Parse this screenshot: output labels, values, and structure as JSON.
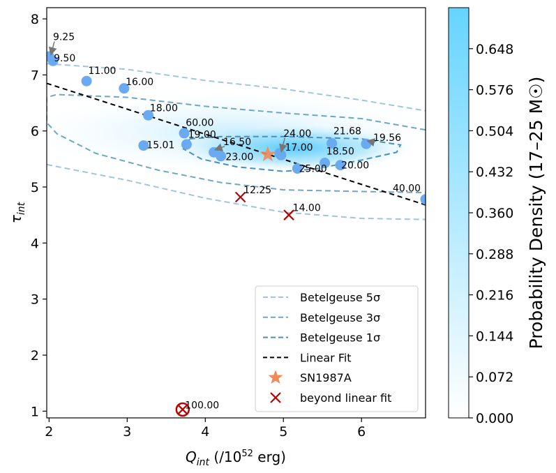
{
  "chart_data": {
    "type": "scatter",
    "xlabel_main": "Q",
    "xlabel_sub": "int",
    "xlabel_unit_prefix": " (/10",
    "xlabel_unit_exp": "52",
    "xlabel_unit_suffix": " erg)",
    "ylabel_main": "τ",
    "ylabel_sub": "int",
    "xlim": [
      1.97,
      6.82
    ],
    "ylim": [
      0.88,
      8.2
    ],
    "xticks": [
      "2",
      "3",
      "4",
      "5",
      "6"
    ],
    "yticks": [
      "1",
      "2",
      "3",
      "4",
      "5",
      "6",
      "7",
      "8"
    ],
    "grid": false,
    "colorbar": {
      "label": "Probability Density (17–25 M☉)",
      "ticks": [
        "0.000",
        "0.072",
        "0.144",
        "0.216",
        "0.288",
        "0.360",
        "0.432",
        "0.504",
        "0.576",
        "0.648"
      ],
      "max": 0.72,
      "color_low": "#ffffff",
      "color_high": "#66d4ff"
    },
    "linear_fit": {
      "x": [
        1.97,
        6.82
      ],
      "y": [
        6.85,
        4.68
      ]
    },
    "points": [
      {
        "label": "9.25",
        "x": 2.0,
        "y": 7.33,
        "lx": 2.05,
        "ly": 7.62,
        "arrow": true
      },
      {
        "label": "9.50",
        "x": 2.05,
        "y": 7.25,
        "lx": 2.06,
        "ly": 7.24,
        "arrow": false
      },
      {
        "label": "11.00",
        "x": 2.48,
        "y": 6.89,
        "lx": 2.5,
        "ly": 7.02,
        "arrow": false
      },
      {
        "label": "16.00",
        "x": 2.96,
        "y": 6.76,
        "lx": 2.98,
        "ly": 6.82,
        "arrow": false
      },
      {
        "label": "18.00",
        "x": 3.27,
        "y": 6.28,
        "lx": 3.29,
        "ly": 6.35,
        "arrow": false
      },
      {
        "label": "60.00",
        "x": 3.73,
        "y": 5.96,
        "lx": 3.75,
        "ly": 6.09,
        "arrow": false
      },
      {
        "label": "19.00",
        "x": 3.76,
        "y": 5.76,
        "lx": 3.78,
        "ly": 5.88,
        "arrow": false
      },
      {
        "label": "15.01",
        "x": 3.21,
        "y": 5.74,
        "lx": 3.25,
        "ly": 5.69,
        "arrow": false
      },
      {
        "label": "16.50",
        "x": 4.11,
        "y": 5.62,
        "lx": 4.23,
        "ly": 5.75,
        "arrow": true
      },
      {
        "label": "23.00",
        "x": 4.2,
        "y": 5.55,
        "lx": 4.26,
        "ly": 5.48,
        "arrow": false
      },
      {
        "label": "24.00",
        "x": 4.95,
        "y": 5.6,
        "lx": 5.0,
        "ly": 5.9,
        "arrow": true
      },
      {
        "label": "17.00",
        "x": 4.97,
        "y": 5.57,
        "lx": 5.02,
        "ly": 5.65,
        "arrow": false
      },
      {
        "label": "21.68",
        "x": 5.62,
        "y": 5.78,
        "lx": 5.64,
        "ly": 5.94,
        "arrow": false
      },
      {
        "label": "19.56",
        "x": 6.06,
        "y": 5.77,
        "lx": 6.15,
        "ly": 5.82,
        "arrow": true
      },
      {
        "label": "18.50",
        "x": 5.53,
        "y": 5.43,
        "lx": 5.55,
        "ly": 5.58,
        "arrow": false
      },
      {
        "label": "25.00",
        "x": 5.18,
        "y": 5.33,
        "lx": 5.2,
        "ly": 5.27,
        "arrow": false
      },
      {
        "label": "20.00",
        "x": 5.73,
        "y": 5.39,
        "lx": 5.74,
        "ly": 5.33,
        "arrow": false
      },
      {
        "label": "40.00",
        "x": 6.82,
        "y": 4.78,
        "lx": 6.4,
        "ly": 4.92,
        "arrow": false
      }
    ],
    "sn1987a": {
      "x": 4.8,
      "y": 5.58,
      "color": "#f08a5a"
    },
    "beyond_fit": [
      {
        "label": "12.25",
        "x": 4.45,
        "y": 4.82,
        "lx": 4.49,
        "ly": 4.89
      },
      {
        "label": "14.00",
        "x": 5.07,
        "y": 4.5,
        "lx": 5.12,
        "ly": 4.57
      },
      {
        "label": "100.00",
        "x": 3.71,
        "y": 1.03,
        "lx": 3.74,
        "ly": 1.05,
        "circled": true
      }
    ],
    "contour_colors": {
      "s5": "#9ec6de",
      "s3": "#6fa6c8",
      "s1": "#4a8fbb"
    },
    "point_color": "#6aaaf0",
    "cross_color": "#bb0000",
    "legend": [
      {
        "key": "s5",
        "label": "Betelgeuse 5σ"
      },
      {
        "key": "s3",
        "label": "Betelgeuse 3σ"
      },
      {
        "key": "s1",
        "label": "Betelgeuse 1σ"
      },
      {
        "key": "fit",
        "label": "Linear Fit"
      },
      {
        "key": "star",
        "label": "SN1987A"
      },
      {
        "key": "cross",
        "label": "beyond linear fit"
      }
    ]
  }
}
